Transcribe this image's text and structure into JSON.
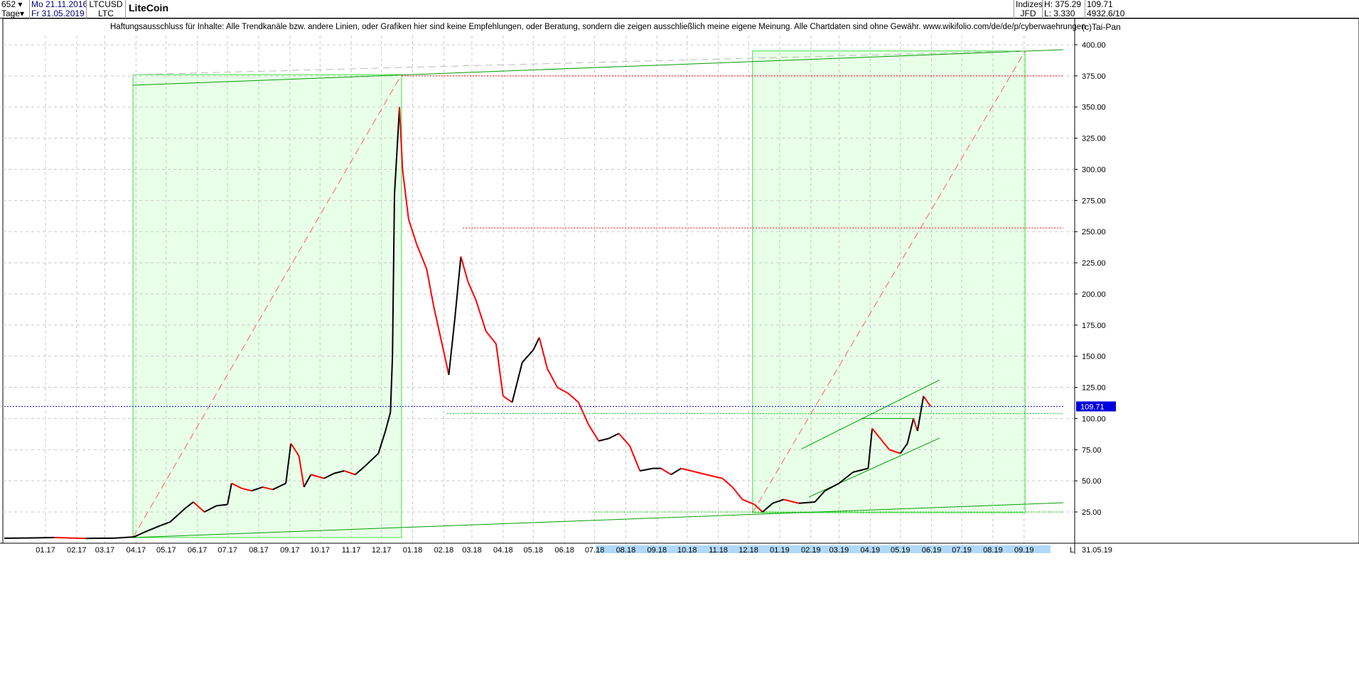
{
  "header": {
    "count": "652",
    "period": "Tage",
    "start_date": "Mo 21.11.2016",
    "end_date": "Fr 31.05.2019",
    "symbol": "LTCUSD",
    "symbol_short": "LTC",
    "title": "LiteCoin",
    "group": "Indizes",
    "source": "JFD",
    "high": "H: 375.29",
    "low": "L: 3.330",
    "last": "109.71",
    "info": "4932.6/10",
    "copyright": "(c)Tai-Pan"
  },
  "disclaimer": "Haftungsausschluss für Inhalte: Alle Trendkanäle bzw. andere Linien, oder Grafiken hier sind keine Empfehlungen, oder Beratung, sondern die zeigen ausschließlich meine eigene Meinung. Alle Chartdaten sind ohne Gewähr.  www.wikifolio.com/de/de/p/cyberwaehrungen",
  "chart_data": {
    "type": "candlestick",
    "title": "LiteCoin",
    "ylim": [
      0,
      410
    ],
    "yticks": [
      25,
      50,
      75,
      100,
      125,
      150,
      175,
      200,
      225,
      250,
      275,
      300,
      325,
      350,
      375,
      400
    ],
    "xticks": [
      "01.17",
      "02.17",
      "03.17",
      "04.17",
      "05.17",
      "06.17",
      "07.17",
      "08.17",
      "09.17",
      "10.17",
      "11.17",
      "12.17",
      "01.18",
      "02.18",
      "03.18",
      "04.18",
      "05.18",
      "06.18",
      "07.18",
      "08.18",
      "09.18",
      "10.18",
      "11.18",
      "12.18",
      "01.19",
      "02.19",
      "03.19",
      "04.19",
      "05.19",
      "06.19",
      "07.19",
      "08.19",
      "09.19"
    ],
    "xtick_dates": [
      "2017-01-01",
      "2017-02-01",
      "2017-03-01",
      "2017-04-01",
      "2017-05-01",
      "2017-06-01",
      "2017-07-01",
      "2017-08-01",
      "2017-09-01",
      "2017-10-01",
      "2017-11-01",
      "2017-12-01",
      "2018-01-01",
      "2018-02-01",
      "2018-03-01",
      "2018-04-01",
      "2018-05-01",
      "2018-06-01",
      "2018-07-01",
      "2018-08-01",
      "2018-09-01",
      "2018-10-01",
      "2018-11-01",
      "2018-12-01",
      "2019-01-01",
      "2019-02-01",
      "2019-03-01",
      "2019-04-01",
      "2019-05-01",
      "2019-06-01",
      "2019-07-01",
      "2019-08-01",
      "2019-09-01"
    ],
    "end_label": "31.05.19",
    "scale_label": "L",
    "last_price": 109.71,
    "grid": true,
    "series": [
      [
        "2016-11-21",
        3.9
      ],
      [
        "2016-12-20",
        4.2
      ],
      [
        "2017-01-10",
        4.5
      ],
      [
        "2017-02-10",
        3.8
      ],
      [
        "2017-03-10",
        4
      ],
      [
        "2017-03-30",
        5
      ],
      [
        "2017-04-10",
        9
      ],
      [
        "2017-04-25",
        14
      ],
      [
        "2017-05-05",
        17
      ],
      [
        "2017-05-20",
        28
      ],
      [
        "2017-05-28",
        33
      ],
      [
        "2017-06-08",
        25
      ],
      [
        "2017-06-20",
        30
      ],
      [
        "2017-07-01",
        31
      ],
      [
        "2017-07-05",
        48
      ],
      [
        "2017-07-15",
        44
      ],
      [
        "2017-07-25",
        42
      ],
      [
        "2017-08-05",
        45
      ],
      [
        "2017-08-15",
        43
      ],
      [
        "2017-08-28",
        48
      ],
      [
        "2017-09-02",
        80
      ],
      [
        "2017-09-10",
        70
      ],
      [
        "2017-09-15",
        45
      ],
      [
        "2017-09-22",
        55
      ],
      [
        "2017-10-05",
        52
      ],
      [
        "2017-10-15",
        56
      ],
      [
        "2017-10-25",
        58
      ],
      [
        "2017-11-05",
        55
      ],
      [
        "2017-11-15",
        62
      ],
      [
        "2017-11-28",
        72
      ],
      [
        "2017-12-05",
        90
      ],
      [
        "2017-12-10",
        105
      ],
      [
        "2017-12-12",
        150
      ],
      [
        "2017-12-14",
        280
      ],
      [
        "2017-12-19",
        350
      ],
      [
        "2017-12-22",
        300
      ],
      [
        "2017-12-28",
        260
      ],
      [
        "2018-01-05",
        240
      ],
      [
        "2018-01-15",
        220
      ],
      [
        "2018-01-22",
        190
      ],
      [
        "2018-02-02",
        150
      ],
      [
        "2018-02-06",
        135
      ],
      [
        "2018-02-12",
        180
      ],
      [
        "2018-02-18",
        230
      ],
      [
        "2018-02-25",
        210
      ],
      [
        "2018-03-05",
        195
      ],
      [
        "2018-03-15",
        170
      ],
      [
        "2018-03-25",
        160
      ],
      [
        "2018-04-01",
        118
      ],
      [
        "2018-04-10",
        113
      ],
      [
        "2018-04-20",
        145
      ],
      [
        "2018-05-01",
        155
      ],
      [
        "2018-05-07",
        165
      ],
      [
        "2018-05-15",
        140
      ],
      [
        "2018-05-25",
        125
      ],
      [
        "2018-06-05",
        120
      ],
      [
        "2018-06-15",
        113
      ],
      [
        "2018-06-25",
        95
      ],
      [
        "2018-07-05",
        82
      ],
      [
        "2018-07-15",
        84
      ],
      [
        "2018-07-25",
        88
      ],
      [
        "2018-08-05",
        78
      ],
      [
        "2018-08-15",
        58
      ],
      [
        "2018-08-28",
        60
      ],
      [
        "2018-09-05",
        60
      ],
      [
        "2018-09-15",
        55
      ],
      [
        "2018-09-25",
        60
      ],
      [
        "2018-10-05",
        58
      ],
      [
        "2018-10-20",
        55
      ],
      [
        "2018-11-05",
        52
      ],
      [
        "2018-11-15",
        45
      ],
      [
        "2018-11-25",
        35
      ],
      [
        "2018-12-07",
        31
      ],
      [
        "2018-12-15",
        25
      ],
      [
        "2018-12-25",
        32
      ],
      [
        "2019-01-05",
        35
      ],
      [
        "2019-01-20",
        32
      ],
      [
        "2019-02-05",
        33
      ],
      [
        "2019-02-15",
        42
      ],
      [
        "2019-03-01",
        48
      ],
      [
        "2019-03-15",
        57
      ],
      [
        "2019-03-30",
        60
      ],
      [
        "2019-04-03",
        92
      ],
      [
        "2019-04-10",
        85
      ],
      [
        "2019-04-20",
        75
      ],
      [
        "2019-05-01",
        72
      ],
      [
        "2019-05-08",
        80
      ],
      [
        "2019-05-14",
        100
      ],
      [
        "2019-05-18",
        90
      ],
      [
        "2019-05-24",
        118
      ],
      [
        "2019-05-31",
        109.71
      ]
    ],
    "annotations": {
      "boxes": [
        {
          "from": [
            "2017-03-29",
            4.5
          ],
          "to": [
            "2017-12-21",
            376
          ]
        },
        {
          "from": [
            "2018-12-05",
            24.4
          ],
          "to": [
            "2019-09-02",
            395
          ]
        }
      ],
      "lines": [
        {
          "color": "#00a000",
          "style": "solid",
          "p": [
            [
              "2017-03-29",
              367.5
            ],
            [
              "2019-10-10",
              396
            ]
          ]
        },
        {
          "color": "#00a000",
          "style": "solid",
          "p": [
            [
              "2017-03-29",
              4.5
            ],
            [
              "2019-10-10",
              32.4
            ]
          ]
        },
        {
          "color": "#00a000",
          "style": "solid",
          "p": [
            [
              "2019-01-23",
              75.7
            ],
            [
              "2019-06-09",
              131
            ]
          ]
        },
        {
          "color": "#00a000",
          "style": "solid",
          "p": [
            [
              "2019-01-30",
              37
            ],
            [
              "2019-06-09",
              84.3
            ]
          ]
        },
        {
          "color": "#00a000",
          "style": "solid",
          "p": [
            [
              "2019-03-23",
              100
            ],
            [
              "2019-05-15",
              100
            ]
          ]
        },
        {
          "color": "#bbbbbb",
          "style": "dash",
          "p": [
            [
              "2017-03-29",
              376
            ],
            [
              "2019-09-02",
              395
            ]
          ]
        },
        {
          "color": "#ff6060",
          "style": "dash",
          "p": [
            [
              "2017-03-29",
              4.5
            ],
            [
              "2017-12-21",
              376
            ]
          ]
        },
        {
          "color": "#ff6060",
          "style": "dash",
          "p": [
            [
              "2018-12-05",
              24.4
            ],
            [
              "2019-09-02",
              395
            ]
          ]
        },
        {
          "color": "#ff0000",
          "style": "dot",
          "p": [
            [
              "2017-12-21",
              375
            ],
            [
              "2019-10-10",
              375
            ]
          ]
        },
        {
          "color": "#ff0000",
          "style": "dot",
          "p": [
            [
              "2018-02-20",
              253
            ],
            [
              "2019-10-10",
              253
            ]
          ]
        },
        {
          "color": "#0000ff",
          "style": "dot",
          "p": [
            [
              "2016-11-21",
              109.71
            ],
            [
              "2019-10-10",
              109.71
            ]
          ]
        },
        {
          "color": "#00c000",
          "style": "dot",
          "p": [
            [
              "2018-02-04",
              104
            ],
            [
              "2019-10-10",
              104
            ]
          ]
        },
        {
          "color": "#00c000",
          "style": "dot",
          "p": [
            [
              "2018-06-29",
              25
            ],
            [
              "2019-10-10",
              25
            ]
          ]
        }
      ]
    }
  }
}
